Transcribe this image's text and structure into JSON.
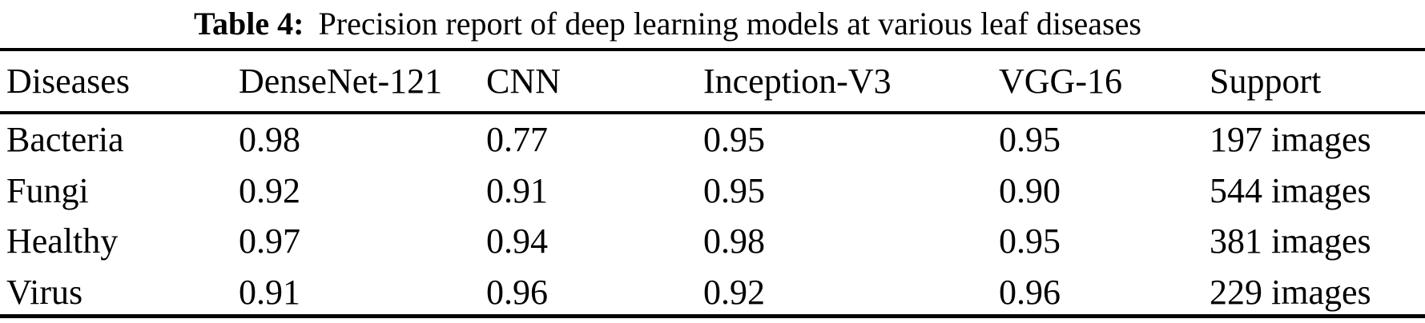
{
  "caption": {
    "label": "Table 4:",
    "text": "Precision report of deep learning models at various leaf diseases"
  },
  "table": {
    "columns": [
      "Diseases",
      "DenseNet-121",
      "CNN",
      "Inception-V3",
      "VGG-16",
      "Support"
    ],
    "rows": [
      [
        "Bacteria",
        "0.98",
        "0.77",
        "0.95",
        "0.95",
        "197 images"
      ],
      [
        "Fungi",
        "0.92",
        "0.91",
        "0.95",
        "0.90",
        "544 images"
      ],
      [
        "Healthy",
        "0.97",
        "0.94",
        "0.98",
        "0.95",
        "381 images"
      ],
      [
        "Virus",
        "0.91",
        "0.96",
        "0.92",
        "0.96",
        "229 images"
      ]
    ]
  },
  "colors": {
    "text": "#000000",
    "background": "#ffffff",
    "rule": "#000000"
  }
}
